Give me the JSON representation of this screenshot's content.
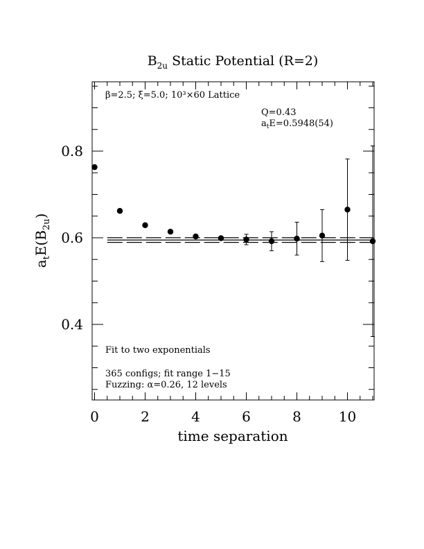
{
  "chart_data": {
    "type": "scatter",
    "title": "B",
    "title_sub": "2u",
    "title_rest": " Static Potential (R=2)",
    "xlabel": "time separation",
    "ylabel_main": "a",
    "ylabel_sub1": "t",
    "ylabel_mid": "E(B",
    "ylabel_sub2": "2u",
    "ylabel_end": ")",
    "xlim": [
      0,
      11
    ],
    "ylim": [
      0.225,
      0.96
    ],
    "x_major_ticks": [
      0,
      2,
      4,
      6,
      8,
      10
    ],
    "x_tick_labels": [
      "0",
      "2",
      "4",
      "6",
      "8",
      "10"
    ],
    "y_major_ticks": [
      0.4,
      0.6,
      0.8
    ],
    "y_tick_labels": [
      "0.4",
      "0.6",
      "0.8"
    ],
    "grid": false,
    "points": [
      {
        "x": 0,
        "y": 0.763,
        "err": 0
      },
      {
        "x": 1,
        "y": 0.662,
        "err": 0
      },
      {
        "x": 2,
        "y": 0.629,
        "err": 0
      },
      {
        "x": 3,
        "y": 0.614,
        "err": 0
      },
      {
        "x": 4,
        "y": 0.603,
        "err": 0
      },
      {
        "x": 5,
        "y": 0.599,
        "err": 0
      },
      {
        "x": 6,
        "y": 0.596,
        "err": 0.012
      },
      {
        "x": 7,
        "y": 0.592,
        "err": 0.022
      },
      {
        "x": 8,
        "y": 0.598,
        "err": 0.038
      },
      {
        "x": 9,
        "y": 0.605,
        "err": 0.06
      },
      {
        "x": 10,
        "y": 0.665,
        "err": 0.117
      },
      {
        "x": 11,
        "y": 0.592,
        "err": 0.22
      }
    ],
    "fit": {
      "x_range": [
        0.5,
        11
      ],
      "central": 0.5948,
      "band": [
        0.5894,
        0.6002
      ]
    },
    "annotations": {
      "lattice_line": "β=2.5; ξ=5.0; 10³×60 Lattice",
      "q_line": "Q=0.43",
      "ate_main": "a",
      "ate_sub": "t",
      "ate_rest": "E=0.5948(54)",
      "fit_type": "Fit to two exponentials",
      "configs": "365 configs; fit range 1−15",
      "fuzzing": "Fuzzing: α=0.26, 12 levels"
    }
  }
}
